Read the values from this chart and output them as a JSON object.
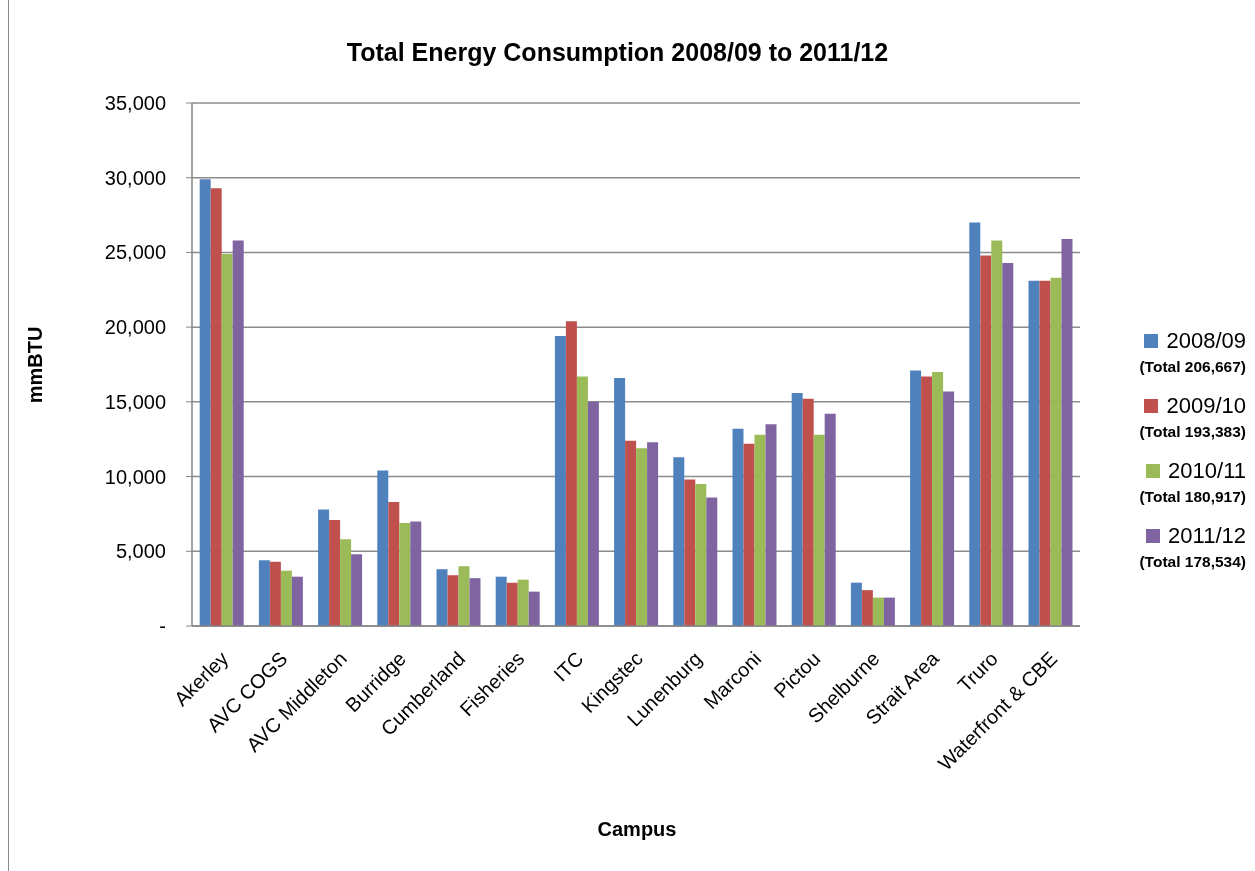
{
  "chart_data": {
    "type": "bar",
    "title": "Total Energy Consumption 2008/09 to 2011/12",
    "xlabel": "Campus",
    "ylabel": "mmBTU",
    "categories": [
      "Akerley",
      "AVC COGS",
      "AVC Middleton",
      "Burridge",
      "Cumberland",
      "Fisheries",
      "ITC",
      "Kingstec",
      "Lunenburg",
      "Marconi",
      "Pictou",
      "Shelburne",
      "Strait Area",
      "Truro",
      "Waterfront & CBE"
    ],
    "series": [
      {
        "name": "2008/09",
        "color": "#4f81bd",
        "values": [
          29900,
          4400,
          7800,
          10400,
          3800,
          3300,
          19400,
          16600,
          11300,
          13200,
          15600,
          2900,
          17100,
          27000,
          23100
        ]
      },
      {
        "name": "2009/10",
        "color": "#c0504d",
        "values": [
          29300,
          4300,
          7100,
          8300,
          3400,
          2900,
          20400,
          12400,
          9800,
          12200,
          15200,
          2400,
          16700,
          24800,
          23100
        ]
      },
      {
        "name": "2010/11",
        "color": "#9bbb59",
        "values": [
          24900,
          3700,
          5800,
          6900,
          4000,
          3100,
          16700,
          11900,
          9500,
          12800,
          12800,
          1900,
          17000,
          25800,
          23300
        ]
      },
      {
        "name": "2011/12",
        "color": "#8064a2",
        "values": [
          25800,
          3300,
          4800,
          7000,
          3200,
          2300,
          15000,
          12300,
          8600,
          13500,
          14200,
          1900,
          15700,
          24300,
          25900
        ]
      }
    ],
    "annotations": [
      "(Total 206,667)",
      "(Total 193,383)",
      "(Total 180,917)",
      "(Total 178,534)"
    ],
    "ylim": [
      0,
      35000
    ],
    "yticks": [
      {
        "value": 0,
        "label": "-"
      },
      {
        "value": 5000,
        "label": "5,000"
      },
      {
        "value": 10000,
        "label": "10,000"
      },
      {
        "value": 15000,
        "label": "15,000"
      },
      {
        "value": 20000,
        "label": "20,000"
      },
      {
        "value": 25000,
        "label": "25,000"
      },
      {
        "value": 30000,
        "label": "30,000"
      },
      {
        "value": 35000,
        "label": "35,000"
      }
    ],
    "grid": "y",
    "legend": "right"
  }
}
